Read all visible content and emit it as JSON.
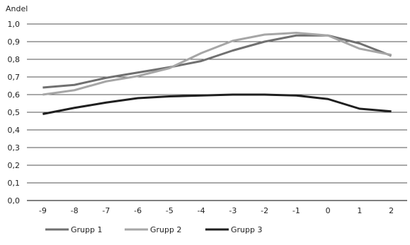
{
  "chart_data": {
    "type": "line",
    "title": "",
    "xlabel": "",
    "ylabel": "Andel",
    "x": [
      -9,
      -8,
      -7,
      -6,
      -5,
      -4,
      -3,
      -2,
      -1,
      0,
      1,
      2
    ],
    "x_tick_labels": [
      "-9",
      "-8",
      "-7",
      "-6",
      "-5",
      "-4",
      "-3",
      "-2",
      "-1",
      "0",
      "1",
      "2"
    ],
    "ylim": [
      0,
      1
    ],
    "y_ticks": [
      0,
      0.1,
      0.2,
      0.3,
      0.4,
      0.5,
      0.6,
      0.7,
      0.8,
      0.9,
      1.0
    ],
    "y_tick_labels": [
      "0,0",
      "0,1",
      "0,2",
      "0,3",
      "0,4",
      "0,5",
      "0,6",
      "0,7",
      "0,8",
      "0,9",
      "1,0"
    ],
    "grid": "horizontal",
    "legend_position": "bottom-left",
    "series": [
      {
        "name": "Grupp 1",
        "color": "#707070",
        "values": [
          0.64,
          0.655,
          0.695,
          0.725,
          0.755,
          0.79,
          0.85,
          0.9,
          0.935,
          0.935,
          0.89,
          0.82
        ]
      },
      {
        "name": "Grupp 2",
        "color": "#a6a6a6",
        "values": [
          0.6,
          0.625,
          0.675,
          0.705,
          0.75,
          0.835,
          0.905,
          0.94,
          0.95,
          0.935,
          0.86,
          0.825
        ]
      },
      {
        "name": "Grupp 3",
        "color": "#1f1f1f",
        "values": [
          0.49,
          0.525,
          0.555,
          0.58,
          0.59,
          0.595,
          0.6,
          0.6,
          0.595,
          0.575,
          0.52,
          0.505
        ]
      }
    ]
  }
}
